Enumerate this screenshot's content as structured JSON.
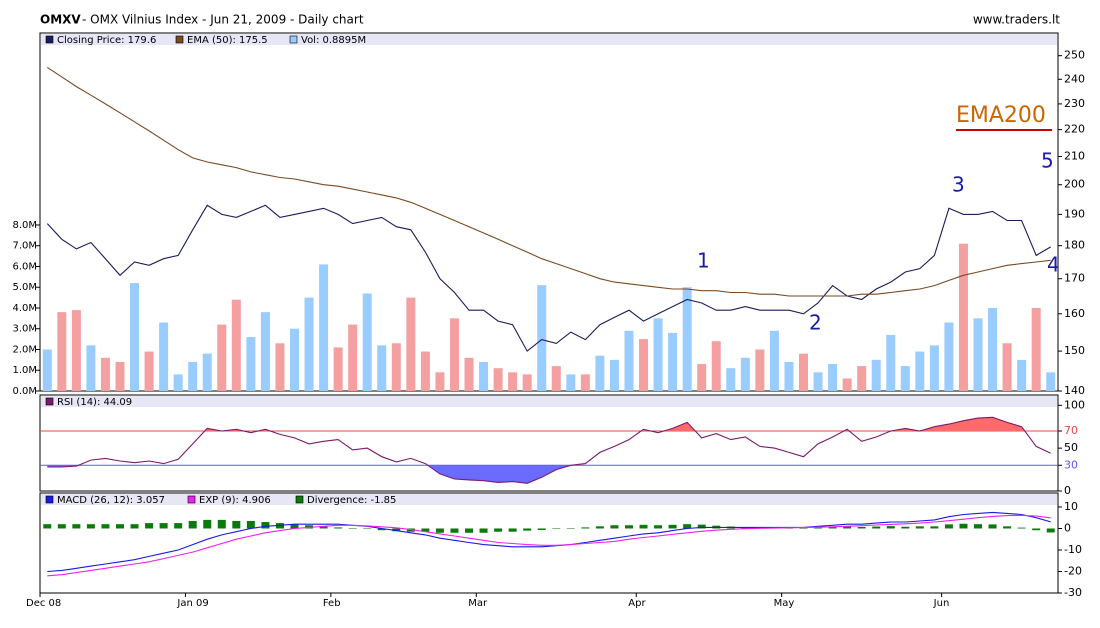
{
  "title_symbol": "OMXV",
  "title": "- OMX Vilnius Index - Jun 21, 2009 - Daily chart",
  "source": "www.traders.lt",
  "chart_data": [
    {
      "type": "line",
      "log_scale": true,
      "ylim": [
        140,
        260
      ],
      "yticks": [
        140,
        150,
        160,
        170,
        180,
        190,
        200,
        210,
        220,
        230,
        240,
        250
      ],
      "y2lim": [
        0,
        17.25
      ],
      "y2ticks": [
        {
          "value": 0,
          "label": "0.0M"
        },
        {
          "value": 1,
          "label": "1.0M"
        },
        {
          "value": 2,
          "label": "2.0M"
        },
        {
          "value": 3,
          "label": "3.0M"
        },
        {
          "value": 4,
          "label": "4.0M"
        },
        {
          "value": 5,
          "label": "5.0M"
        },
        {
          "value": 6,
          "label": "6.0M"
        },
        {
          "value": 7,
          "label": "7.0M"
        },
        {
          "value": 8,
          "label": "8.0M"
        }
      ],
      "series": [
        {
          "name": "Closing Price: 179.6",
          "color": "#1c1c5c",
          "values": [
            187,
            182,
            179,
            181,
            176,
            171,
            175,
            174,
            176,
            177,
            185,
            193,
            190,
            189,
            191,
            193,
            189,
            190,
            191,
            192,
            190,
            187,
            188,
            189,
            186,
            185,
            178,
            170,
            166,
            161,
            161,
            158,
            157,
            150,
            153,
            152,
            155,
            153,
            157,
            159,
            161,
            158,
            160,
            162,
            164,
            163,
            161,
            161,
            162,
            161,
            161,
            161,
            160,
            163,
            168,
            165,
            164,
            167,
            169,
            172,
            173,
            177,
            192,
            190,
            190,
            191,
            188,
            188,
            177,
            179.6
          ]
        },
        {
          "name": "EMA (50): 175.5",
          "color": "#7a4a22",
          "values": [
            245,
            241,
            237,
            233.5,
            230,
            226.5,
            223,
            219.5,
            216,
            212.5,
            209.5,
            208,
            207,
            206,
            204.5,
            203.5,
            202.5,
            202,
            201,
            200,
            199.5,
            198.5,
            197.5,
            196.5,
            195.5,
            194,
            192,
            190,
            188,
            186,
            184,
            182,
            180,
            178,
            176,
            174.5,
            173,
            171.5,
            170,
            169,
            168.5,
            168,
            167.5,
            167,
            167,
            166.5,
            166.5,
            166,
            166,
            165.5,
            165.5,
            165,
            165,
            165,
            165,
            165,
            165.5,
            165.5,
            166,
            166.5,
            167,
            168,
            169.5,
            171,
            172,
            173,
            174,
            174.5,
            175,
            175.5
          ]
        },
        {
          "name": "Vol: 0.8895M",
          "type": "bar",
          "axis": "y2",
          "color": "#99ccff",
          "down_color": "#f4a0a0",
          "values": [
            2.0,
            3.8,
            3.9,
            2.2,
            1.6,
            1.4,
            5.2,
            1.9,
            3.3,
            0.8,
            1.4,
            1.8,
            3.2,
            4.4,
            2.6,
            3.8,
            2.3,
            3.0,
            4.5,
            6.1,
            2.1,
            3.2,
            4.7,
            2.2,
            2.3,
            4.5,
            1.9,
            0.9,
            3.5,
            1.6,
            1.4,
            1.1,
            0.9,
            0.8,
            5.1,
            1.2,
            0.8,
            0.8,
            1.7,
            1.5,
            2.9,
            2.5,
            3.5,
            2.8,
            5.0,
            1.3,
            2.4,
            1.1,
            1.6,
            2.0,
            2.9,
            1.4,
            1.8,
            0.9,
            1.3,
            0.6,
            1.2,
            1.5,
            2.7,
            1.2,
            1.9,
            2.2,
            3.3,
            7.1,
            3.5,
            4.0,
            2.3,
            1.5,
            4.0,
            0.9
          ]
        }
      ],
      "annotations": [
        "EMA200",
        "1",
        "2",
        "3",
        "4",
        "5"
      ]
    },
    {
      "type": "line",
      "ylim": [
        0,
        112
      ],
      "yticks": [
        0,
        30,
        50,
        70,
        100
      ],
      "levels": [
        {
          "value": 70,
          "color": "#e04848",
          "fill": "#ff6b6b"
        },
        {
          "value": 30,
          "color": "#5a5ae6",
          "fill": "#6b6bff"
        }
      ],
      "series": [
        {
          "name": "RSI (14): 44.09",
          "color": "#7a1a6a",
          "values": [
            28,
            28,
            29,
            36,
            38,
            35,
            33,
            35,
            32,
            37,
            55,
            73,
            70,
            72,
            68,
            72,
            66,
            62,
            55,
            58,
            60,
            48,
            50,
            40,
            34,
            38,
            32,
            20,
            14,
            13,
            12,
            10,
            11,
            9,
            16,
            25,
            30,
            32,
            45,
            52,
            60,
            72,
            68,
            73,
            80,
            62,
            67,
            60,
            63,
            52,
            50,
            45,
            40,
            55,
            63,
            72,
            58,
            63,
            70,
            73,
            70,
            75,
            78,
            82,
            85,
            86,
            80,
            75,
            52,
            44.09
          ]
        }
      ]
    },
    {
      "type": "line",
      "ylim": [
        -30,
        16.5
      ],
      "yticks": [
        -30,
        -20,
        -10,
        0,
        10
      ],
      "categories": [
        "Dec 08",
        null,
        null,
        null,
        null,
        null,
        null,
        null,
        null,
        null,
        "Jan 09",
        null,
        null,
        null,
        null,
        null,
        null,
        null,
        null,
        null,
        "Feb",
        null,
        null,
        null,
        null,
        null,
        null,
        null,
        null,
        null,
        "Mar",
        null,
        null,
        null,
        null,
        null,
        null,
        null,
        null,
        null,
        null,
        "Apr",
        null,
        null,
        null,
        null,
        null,
        null,
        null,
        null,
        null,
        "May",
        null,
        null,
        null,
        null,
        null,
        null,
        null,
        null,
        null,
        null,
        "Jun",
        null,
        null,
        null,
        null,
        null,
        null,
        null
      ],
      "series": [
        {
          "name": "MACD (26, 12): 3.057",
          "color": "#1a1ae0",
          "values": [
            -20,
            -19.5,
            -18.5,
            -17.5,
            -16.5,
            -15.5,
            -14.5,
            -13,
            -11.5,
            -10,
            -7.5,
            -5,
            -3,
            -1.5,
            0,
            1,
            1.5,
            2,
            2,
            2,
            2,
            1.5,
            1,
            0,
            -1,
            -2,
            -3,
            -4.5,
            -5.5,
            -6.5,
            -7.5,
            -8,
            -8.5,
            -8.5,
            -8.5,
            -8,
            -7.5,
            -6.5,
            -5.5,
            -4.5,
            -3.5,
            -2.5,
            -2,
            -1,
            0,
            0.5,
            0.5,
            0.5,
            0.5,
            0.5,
            0.5,
            0.5,
            0.5,
            1,
            1.5,
            2,
            2,
            2.5,
            3,
            3,
            3.5,
            4,
            5.5,
            6.5,
            7,
            7.5,
            7,
            6.5,
            5,
            3.057
          ]
        },
        {
          "name": "EXP (9): 4.906",
          "color": "#ee22ee",
          "values": [
            -22,
            -21.5,
            -20.5,
            -19.5,
            -18.5,
            -17.5,
            -16.5,
            -15.5,
            -14,
            -12.5,
            -11,
            -9,
            -7,
            -5,
            -3.5,
            -2,
            -1,
            0,
            0.5,
            1,
            1.5,
            1.5,
            1.2,
            0.8,
            0.3,
            -0.5,
            -1.5,
            -2.5,
            -3.5,
            -4.5,
            -5.5,
            -6.5,
            -7,
            -7.5,
            -7.8,
            -7.8,
            -7.5,
            -7,
            -6.5,
            -6,
            -5,
            -4.2,
            -3.5,
            -2.7,
            -2,
            -1.3,
            -0.8,
            -0.4,
            -0.1,
            0.1,
            0.2,
            0.3,
            0.4,
            0.6,
            0.8,
            1,
            1.3,
            1.6,
            1.9,
            2.2,
            2.5,
            3,
            3.6,
            4.3,
            5,
            5.6,
            6,
            6.1,
            5.8,
            4.906
          ]
        },
        {
          "name": "Divergence: -1.85",
          "type": "bar",
          "color": "#0a7a0a",
          "values": [
            2,
            2,
            2,
            2,
            2,
            2,
            2,
            2.5,
            2.5,
            2.5,
            3.5,
            4,
            4,
            3.5,
            3.5,
            3,
            2.5,
            2,
            1.5,
            1,
            0.5,
            0,
            -0.2,
            -0.8,
            -1.3,
            -1.5,
            -1.5,
            -2,
            -2,
            -2,
            -2,
            -1.5,
            -1.5,
            -1,
            -0.7,
            -0.2,
            0,
            0.5,
            1,
            1.5,
            1.5,
            1.7,
            1.5,
            1.7,
            2,
            1.8,
            1.3,
            0.9,
            0.6,
            0.4,
            0.3,
            0.2,
            0.1,
            0.4,
            0.7,
            1,
            0.7,
            0.9,
            1.1,
            0.8,
            1,
            1,
            1.9,
            2.2,
            2,
            1.9,
            1,
            0.4,
            -0.8,
            -1.85
          ]
        }
      ]
    }
  ]
}
